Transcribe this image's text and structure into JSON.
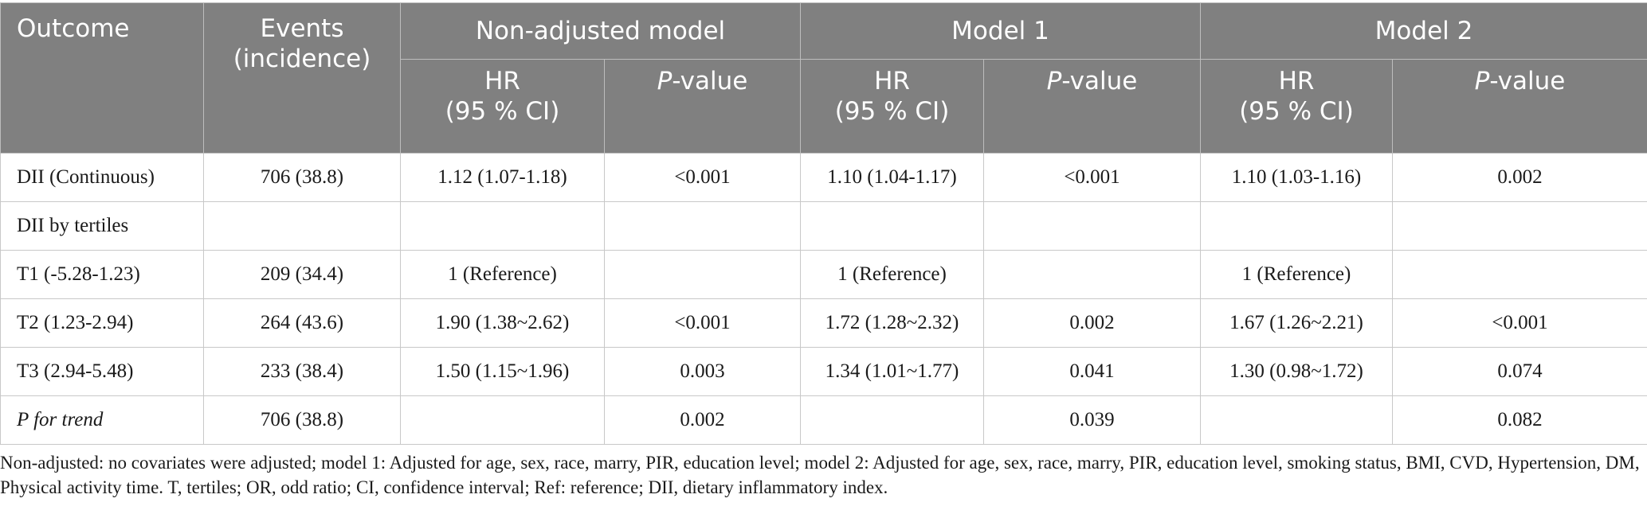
{
  "header": {
    "outcome": "Outcome",
    "events_line1": "Events",
    "events_line2": "(incidence)",
    "groups": [
      "Non-adjusted model",
      "Model 1",
      "Model 2"
    ],
    "hr_line1": "HR",
    "hr_line2": "(95 % CI)",
    "p_italic": "P",
    "p_suffix": "-value"
  },
  "rows": [
    {
      "outcome": "DII (Continuous)",
      "events": "706 (38.8)",
      "cells": [
        "1.12 (1.07-1.18)",
        "<0.001",
        "1.10 (1.04-1.17)",
        "<0.001",
        "1.10 (1.03-1.16)",
        "0.002"
      ]
    },
    {
      "outcome": "DII by tertiles",
      "events": "",
      "cells": [
        "",
        "",
        "",
        "",
        "",
        ""
      ]
    },
    {
      "outcome": "T1 (-5.28-1.23)",
      "events": "209 (34.4)",
      "cells": [
        "1 (Reference)",
        "",
        "1 (Reference)",
        "",
        "1 (Reference)",
        ""
      ]
    },
    {
      "outcome": "T2 (1.23-2.94)",
      "events": "264 (43.6)",
      "cells": [
        "1.90 (1.38~2.62)",
        "<0.001",
        "1.72 (1.28~2.32)",
        "0.002",
        "1.67 (1.26~2.21)",
        "<0.001"
      ]
    },
    {
      "outcome": "T3 (2.94-5.48)",
      "events": "233 (38.4)",
      "cells": [
        "1.50 (1.15~1.96)",
        "0.003",
        "1.34 (1.01~1.77)",
        "0.041",
        "1.30 (0.98~1.72)",
        "0.074"
      ]
    },
    {
      "outcome": "P for trend",
      "events": "706 (38.8)",
      "cells": [
        "",
        "0.002",
        "",
        "0.039",
        "",
        "0.082"
      ]
    }
  ],
  "footnote": "Non-adjusted: no covariates were adjusted; model 1: Adjusted for age, sex, race, marry, PIR, education level; model 2: Adjusted for age, sex, race, marry, PIR, education level, smoking status, BMI, CVD, Hypertension, DM, Physical activity time. T, tertiles; OR, odd ratio; CI, confidence interval; Ref: reference; DII, dietary inflammatory index."
}
